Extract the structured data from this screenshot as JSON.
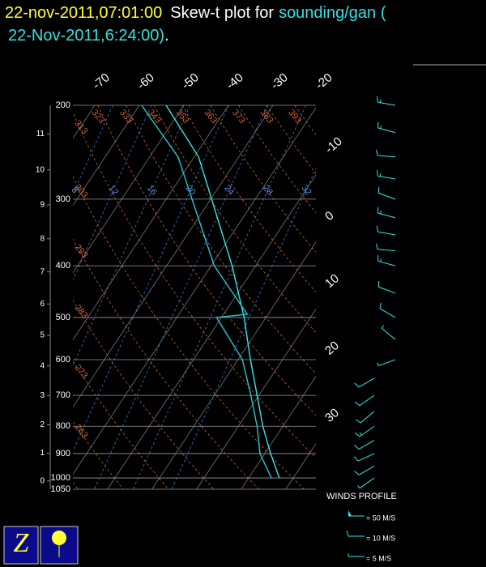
{
  "chart_data": {
    "type": "skewt",
    "title_time": "22-nov-2011,07:01:00",
    "title_text": "Skew-t plot for",
    "title_station": "sounding/gan (",
    "title_obs_time": "22-Nov-2011,6:24:00)",
    "title_end": ".",
    "ylim": [
      200,
      1050
    ],
    "pressure_ticks": [
      200,
      300,
      400,
      500,
      600,
      700,
      800,
      900,
      1000,
      1050
    ],
    "height_ticks": [
      0,
      1,
      2,
      3,
      4,
      5,
      6,
      7,
      8,
      9,
      10,
      11
    ],
    "temperature_ticks": [
      -70,
      -60,
      -50,
      -40,
      -30,
      -20,
      -10,
      0,
      10,
      20,
      30
    ],
    "dry_adiabats": [
      253,
      263,
      273,
      283,
      293,
      303,
      313,
      323,
      333,
      343,
      353,
      363,
      373,
      383,
      393
    ],
    "mixing_ratios": [
      8,
      12,
      16,
      20,
      24,
      28,
      32
    ],
    "series": [
      {
        "color": "#33e8e8",
        "pressure": [
          200,
          250,
          300,
          400,
          500,
          600,
          700,
          800,
          900,
          1000
        ],
        "values": [
          -54,
          -39,
          -29.8,
          -15.3,
          -4.9,
          2.8,
          9.6,
          15.5,
          21.3,
          26.9
        ]
      },
      {
        "color": "#22c8d8",
        "pressure": [
          200,
          250,
          300,
          400,
          493,
          500,
          600,
          700,
          800,
          900,
          1000
        ],
        "values": [
          -59.5,
          -43.6,
          -34.2,
          -19.3,
          -4.7,
          -11.1,
          1,
          8.2,
          14.2,
          18.9,
          25.1
        ]
      }
    ],
    "winds": {
      "label": "WINDS PROFILE",
      "color": "#33e8e8",
      "pressure": [
        200,
        225,
        250,
        275,
        300,
        325,
        350,
        375,
        400,
        450,
        500,
        550,
        600,
        650,
        700,
        750,
        800,
        850,
        900,
        950,
        1000
      ],
      "direction": [
        280,
        285,
        275,
        280,
        290,
        285,
        280,
        275,
        285,
        290,
        300,
        310,
        250,
        240,
        235,
        230,
        235,
        240,
        245,
        240,
        235
      ],
      "speed": [
        15,
        15,
        10,
        15,
        10,
        15,
        10,
        10,
        15,
        10,
        10,
        5,
        5,
        10,
        10,
        10,
        15,
        10,
        10,
        10,
        5
      ],
      "legend": [
        {
          "speed": 50,
          "label": "= 50 M/S"
        },
        {
          "speed": 10,
          "label": "= 10 M/S"
        },
        {
          "speed": 5,
          "label": "= 5 M/S"
        }
      ]
    }
  }
}
